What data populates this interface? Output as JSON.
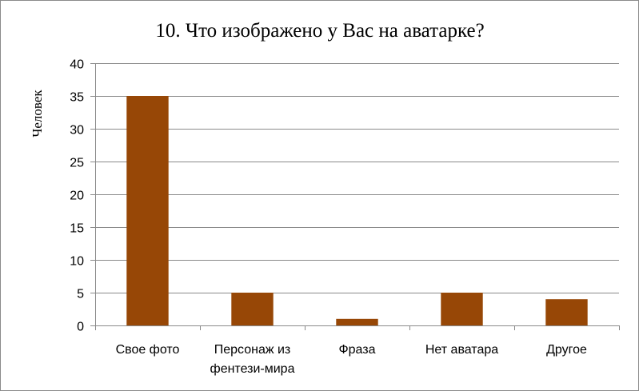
{
  "chart_data": {
    "type": "bar",
    "title": "10. Что изображено у Вас на аватарке?",
    "ylabel": "Человек",
    "xlabel": "",
    "categories": [
      [
        "Свое фото"
      ],
      [
        "Персонаж из",
        "фентези-мира"
      ],
      [
        "Фраза"
      ],
      [
        "Нет аватара"
      ],
      [
        "Другое"
      ]
    ],
    "values": [
      35,
      5,
      1,
      5,
      4
    ],
    "ylim": [
      0,
      40
    ],
    "yticks": [
      0,
      5,
      10,
      15,
      20,
      25,
      30,
      35,
      40
    ],
    "grid": true,
    "legend": "none",
    "colors": {
      "bar": "#974706",
      "grid": "#8a8a8a",
      "axis": "#8a8a8a"
    }
  }
}
